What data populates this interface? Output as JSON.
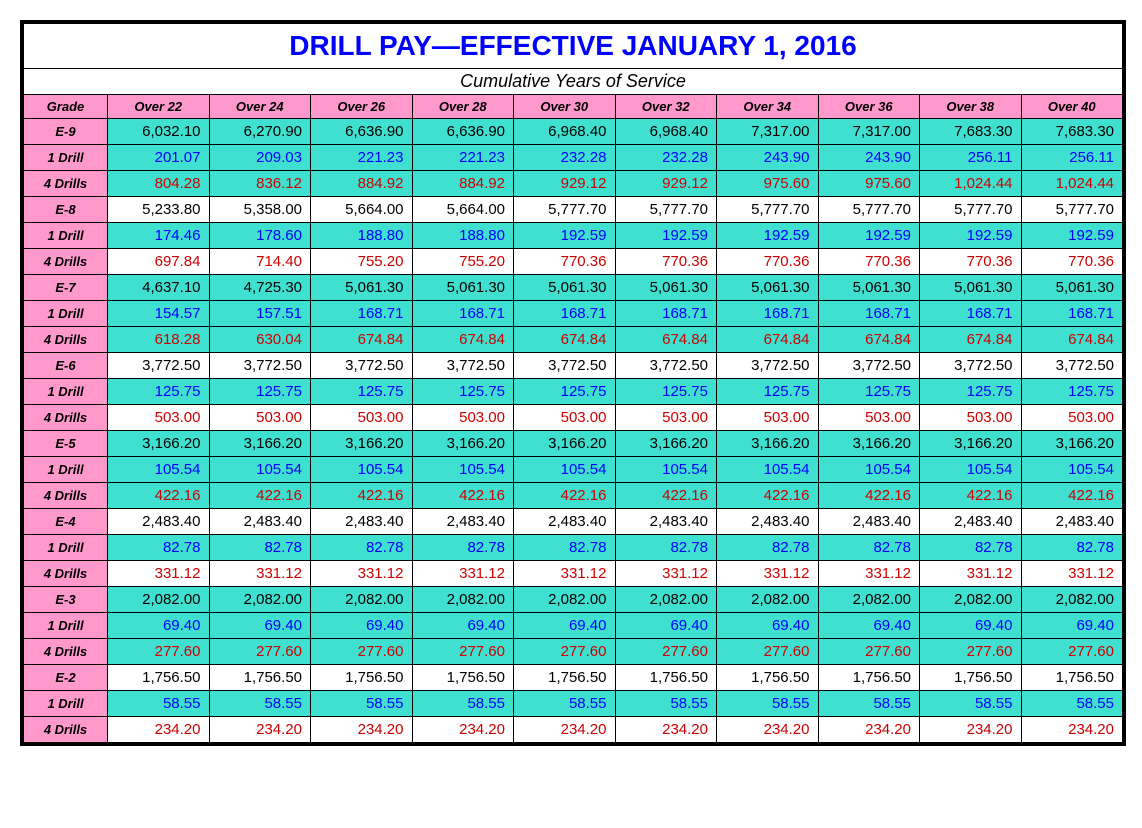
{
  "title": "DRILL PAY—EFFECTIVE JANUARY 1, 2016",
  "subtitle": "Cumulative Years of Service",
  "columns": [
    "Grade",
    "Over 22",
    "Over 24",
    "Over 26",
    "Over 28",
    "Over 30",
    "Over 32",
    "Over 34",
    "Over 36",
    "Over 38",
    "Over 40"
  ],
  "colors": {
    "title_text": "#0000ff",
    "header_bg": "#ff99cc",
    "cyan_bg": "#40e0d0",
    "white_bg": "#ffffff",
    "black_text": "#000000",
    "blue_text": "#0000ff",
    "red_text": "#cc0000",
    "border": "#000000"
  },
  "rows": [
    {
      "label": "E-9",
      "kind": "base",
      "grade": "E-9",
      "values": [
        "6,032.10",
        "6,270.90",
        "6,636.90",
        "6,636.90",
        "6,968.40",
        "6,968.40",
        "7,317.00",
        "7,317.00",
        "7,683.30",
        "7,683.30"
      ]
    },
    {
      "label": "1 Drill",
      "kind": "1d",
      "grade": "E-9",
      "values": [
        "201.07",
        "209.03",
        "221.23",
        "221.23",
        "232.28",
        "232.28",
        "243.90",
        "243.90",
        "256.11",
        "256.11"
      ]
    },
    {
      "label": "4 Drills",
      "kind": "4d",
      "grade": "E-9",
      "values": [
        "804.28",
        "836.12",
        "884.92",
        "884.92",
        "929.12",
        "929.12",
        "975.60",
        "975.60",
        "1,024.44",
        "1,024.44"
      ]
    },
    {
      "label": "E-8",
      "kind": "base",
      "grade": "E-8",
      "values": [
        "5,233.80",
        "5,358.00",
        "5,664.00",
        "5,664.00",
        "5,777.70",
        "5,777.70",
        "5,777.70",
        "5,777.70",
        "5,777.70",
        "5,777.70"
      ]
    },
    {
      "label": "1 Drill",
      "kind": "1d",
      "grade": "E-8",
      "values": [
        "174.46",
        "178.60",
        "188.80",
        "188.80",
        "192.59",
        "192.59",
        "192.59",
        "192.59",
        "192.59",
        "192.59"
      ]
    },
    {
      "label": "4 Drills",
      "kind": "4d",
      "grade": "E-8",
      "values": [
        "697.84",
        "714.40",
        "755.20",
        "755.20",
        "770.36",
        "770.36",
        "770.36",
        "770.36",
        "770.36",
        "770.36"
      ]
    },
    {
      "label": "E-7",
      "kind": "base",
      "grade": "E-7",
      "values": [
        "4,637.10",
        "4,725.30",
        "5,061.30",
        "5,061.30",
        "5,061.30",
        "5,061.30",
        "5,061.30",
        "5,061.30",
        "5,061.30",
        "5,061.30"
      ]
    },
    {
      "label": "1 Drill",
      "kind": "1d",
      "grade": "E-7",
      "values": [
        "154.57",
        "157.51",
        "168.71",
        "168.71",
        "168.71",
        "168.71",
        "168.71",
        "168.71",
        "168.71",
        "168.71"
      ]
    },
    {
      "label": "4 Drills",
      "kind": "4d",
      "grade": "E-7",
      "values": [
        "618.28",
        "630.04",
        "674.84",
        "674.84",
        "674.84",
        "674.84",
        "674.84",
        "674.84",
        "674.84",
        "674.84"
      ]
    },
    {
      "label": "E-6",
      "kind": "base",
      "grade": "E-6",
      "values": [
        "3,772.50",
        "3,772.50",
        "3,772.50",
        "3,772.50",
        "3,772.50",
        "3,772.50",
        "3,772.50",
        "3,772.50",
        "3,772.50",
        "3,772.50"
      ]
    },
    {
      "label": "1 Drill",
      "kind": "1d",
      "grade": "E-6",
      "values": [
        "125.75",
        "125.75",
        "125.75",
        "125.75",
        "125.75",
        "125.75",
        "125.75",
        "125.75",
        "125.75",
        "125.75"
      ]
    },
    {
      "label": "4 Drills",
      "kind": "4d",
      "grade": "E-6",
      "values": [
        "503.00",
        "503.00",
        "503.00",
        "503.00",
        "503.00",
        "503.00",
        "503.00",
        "503.00",
        "503.00",
        "503.00"
      ]
    },
    {
      "label": "E-5",
      "kind": "base",
      "grade": "E-5",
      "values": [
        "3,166.20",
        "3,166.20",
        "3,166.20",
        "3,166.20",
        "3,166.20",
        "3,166.20",
        "3,166.20",
        "3,166.20",
        "3,166.20",
        "3,166.20"
      ]
    },
    {
      "label": "1 Drill",
      "kind": "1d",
      "grade": "E-5",
      "values": [
        "105.54",
        "105.54",
        "105.54",
        "105.54",
        "105.54",
        "105.54",
        "105.54",
        "105.54",
        "105.54",
        "105.54"
      ]
    },
    {
      "label": "4 Drills",
      "kind": "4d",
      "grade": "E-5",
      "values": [
        "422.16",
        "422.16",
        "422.16",
        "422.16",
        "422.16",
        "422.16",
        "422.16",
        "422.16",
        "422.16",
        "422.16"
      ]
    },
    {
      "label": "E-4",
      "kind": "base",
      "grade": "E-4",
      "values": [
        "2,483.40",
        "2,483.40",
        "2,483.40",
        "2,483.40",
        "2,483.40",
        "2,483.40",
        "2,483.40",
        "2,483.40",
        "2,483.40",
        "2,483.40"
      ]
    },
    {
      "label": "1 Drill",
      "kind": "1d",
      "grade": "E-4",
      "values": [
        "82.78",
        "82.78",
        "82.78",
        "82.78",
        "82.78",
        "82.78",
        "82.78",
        "82.78",
        "82.78",
        "82.78"
      ]
    },
    {
      "label": "4 Drills",
      "kind": "4d",
      "grade": "E-4",
      "values": [
        "331.12",
        "331.12",
        "331.12",
        "331.12",
        "331.12",
        "331.12",
        "331.12",
        "331.12",
        "331.12",
        "331.12"
      ]
    },
    {
      "label": "E-3",
      "kind": "base",
      "grade": "E-3",
      "values": [
        "2,082.00",
        "2,082.00",
        "2,082.00",
        "2,082.00",
        "2,082.00",
        "2,082.00",
        "2,082.00",
        "2,082.00",
        "2,082.00",
        "2,082.00"
      ]
    },
    {
      "label": "1 Drill",
      "kind": "1d",
      "grade": "E-3",
      "values": [
        "69.40",
        "69.40",
        "69.40",
        "69.40",
        "69.40",
        "69.40",
        "69.40",
        "69.40",
        "69.40",
        "69.40"
      ]
    },
    {
      "label": "4 Drills",
      "kind": "4d",
      "grade": "E-3",
      "values": [
        "277.60",
        "277.60",
        "277.60",
        "277.60",
        "277.60",
        "277.60",
        "277.60",
        "277.60",
        "277.60",
        "277.60"
      ]
    },
    {
      "label": "E-2",
      "kind": "base",
      "grade": "E-2",
      "values": [
        "1,756.50",
        "1,756.50",
        "1,756.50",
        "1,756.50",
        "1,756.50",
        "1,756.50",
        "1,756.50",
        "1,756.50",
        "1,756.50",
        "1,756.50"
      ]
    },
    {
      "label": "1 Drill",
      "kind": "1d",
      "grade": "E-2",
      "values": [
        "58.55",
        "58.55",
        "58.55",
        "58.55",
        "58.55",
        "58.55",
        "58.55",
        "58.55",
        "58.55",
        "58.55"
      ]
    },
    {
      "label": "4 Drills",
      "kind": "4d",
      "grade": "E-2",
      "values": [
        "234.20",
        "234.20",
        "234.20",
        "234.20",
        "234.20",
        "234.20",
        "234.20",
        "234.20",
        "234.20",
        "234.20"
      ]
    }
  ],
  "row_styling": {
    "odd_grade_band": [
      "E-9",
      "E-7",
      "E-5",
      "E-3"
    ],
    "note": "Grades listed in odd_grade_band have cyan backgrounds on base and 4-Drills rows; all 1-Drill rows cyan; all 4-Drills text red; all 1-Drill text blue"
  }
}
